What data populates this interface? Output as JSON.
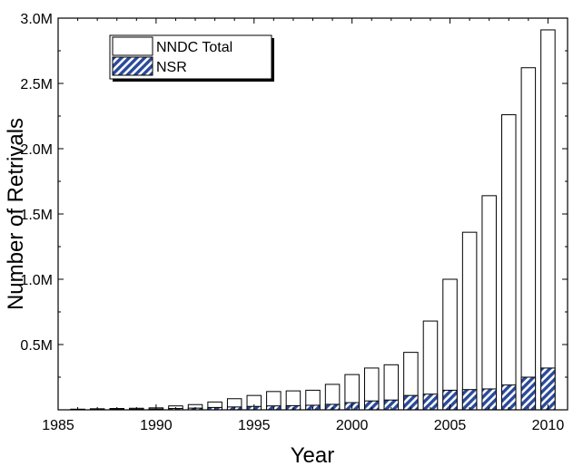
{
  "chart_data": {
    "type": "bar",
    "xlabel": "Year",
    "ylabel": "Number of Retrivals",
    "xlim": [
      1985,
      2011
    ],
    "ylim": [
      0,
      3000000
    ],
    "x_ticks": [
      1985,
      1990,
      1995,
      2000,
      2005,
      2010
    ],
    "x_tick_labels": [
      "1985",
      "1990",
      "1995",
      "2000",
      "2005",
      "2010"
    ],
    "y_ticks": [
      500000,
      1000000,
      1500000,
      2000000,
      2500000,
      3000000
    ],
    "y_tick_labels": [
      "0.5M",
      "1.0M",
      "1.5M",
      "2.0M",
      "2.5M",
      "3.0M"
    ],
    "legend_position": "top-left",
    "grid": false,
    "x": [
      1986,
      1987,
      1988,
      1989,
      1990,
      1991,
      1992,
      1993,
      1994,
      1995,
      1996,
      1997,
      1998,
      1999,
      2000,
      2001,
      2002,
      2003,
      2004,
      2005,
      2006,
      2007,
      2008,
      2009,
      2010
    ],
    "series": [
      {
        "name": "NNDC Total",
        "fill": "#ffffff",
        "values": [
          5000,
          8000,
          10000,
          12000,
          15000,
          30000,
          40000,
          60000,
          85000,
          110000,
          140000,
          145000,
          150000,
          195000,
          270000,
          320000,
          345000,
          440000,
          680000,
          1000000,
          1360000,
          1640000,
          2260000,
          2620000,
          2910000
        ]
      },
      {
        "name": "NSR",
        "fill": "#2a4a9a",
        "pattern": "diagonal-hatch",
        "values": [
          2000,
          3000,
          4000,
          5000,
          6000,
          10000,
          13000,
          18000,
          22000,
          26000,
          30000,
          32000,
          35000,
          42000,
          55000,
          68000,
          75000,
          110000,
          120000,
          150000,
          155000,
          160000,
          190000,
          250000,
          320000
        ]
      }
    ]
  }
}
